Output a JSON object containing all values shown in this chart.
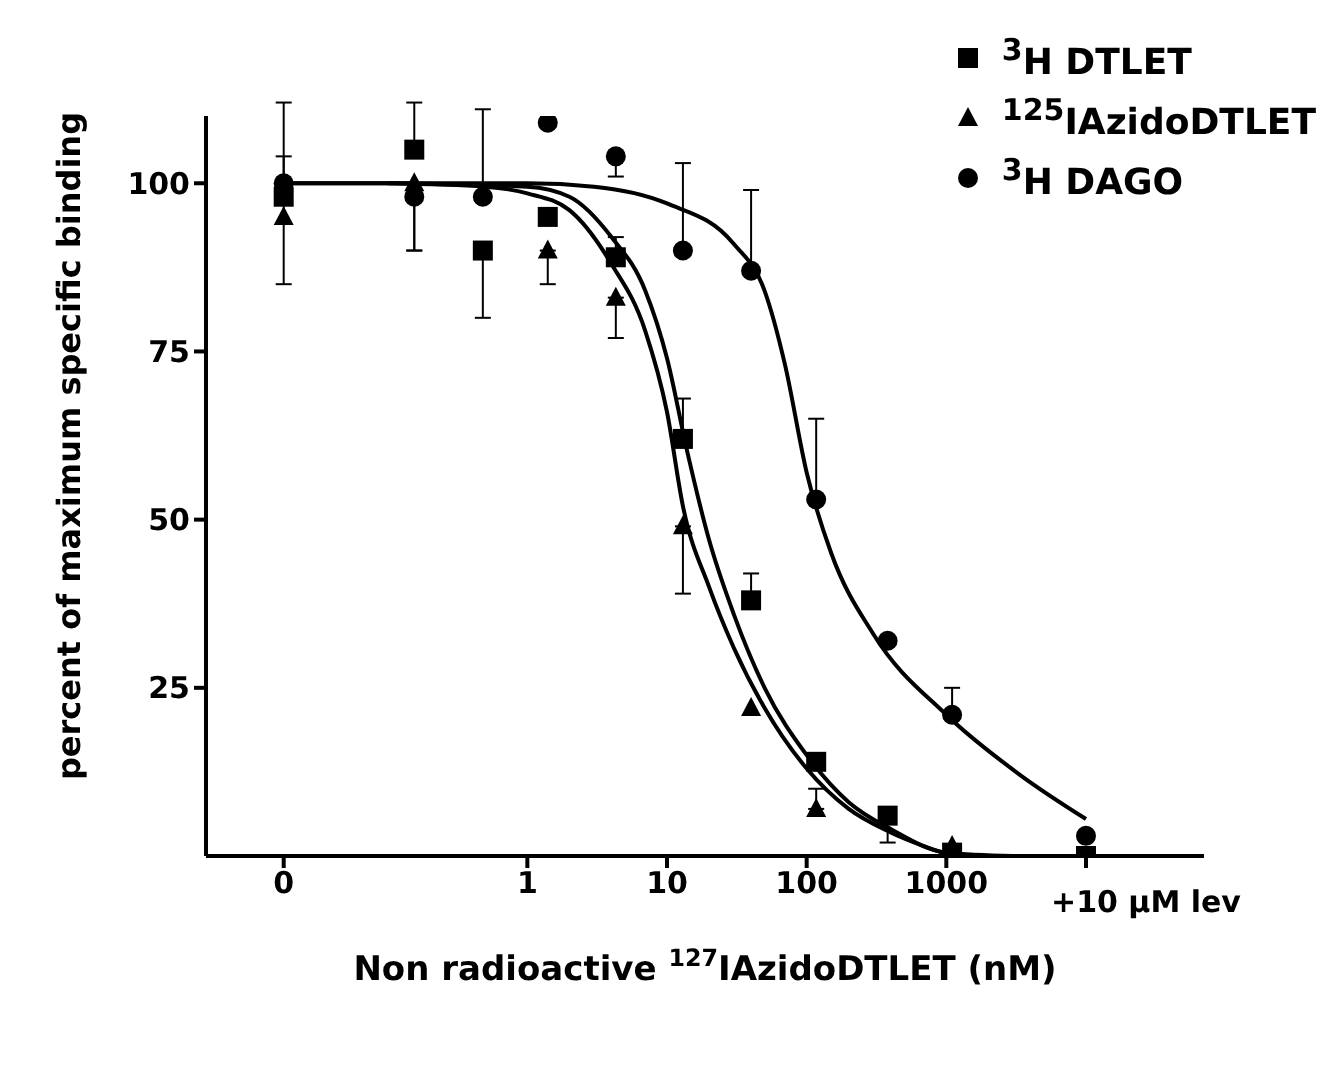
{
  "chart_data": {
    "type": "scatter",
    "xlabel": "Non radioactive $^{127}$IAzidoDTLET (nM)",
    "ylabel": "percent of maximum specific binding",
    "log": "x",
    "xlim": [
      0.005,
      70000
    ],
    "ylim": [
      0,
      110
    ],
    "xticks": [
      {
        "value": 0.018,
        "label": "0"
      },
      1,
      10,
      100,
      1000,
      {
        "value": 10000,
        "label": null
      }
    ],
    "annotations": [
      {
        "text": "+10 μM lev",
        "x": 10000,
        "y": 0
      }
    ],
    "yticks": [
      25,
      50,
      75,
      100
    ],
    "grid": false,
    "legend": "top right",
    "series": [
      {
        "name": "$^{3}$H DTLET",
        "marker": "square",
        "color": "#000000",
        "x": [
          0.018,
          0.155,
          0.48,
          1.4,
          4.3,
          13,
          40,
          117,
          380,
          1100,
          10000
        ],
        "values": [
          98,
          105,
          90,
          95,
          89,
          62,
          38,
          14,
          6,
          0.5,
          0
        ],
        "errors": [
          null,
          [
            105,
            112
          ],
          [
            80,
            90
          ],
          null,
          [
            89,
            92
          ],
          [
            62,
            68
          ],
          [
            38,
            42
          ],
          null,
          [
            2,
            6
          ],
          null,
          null
        ]
      },
      {
        "name": "$^{125}$IAzidoDTLET",
        "marker": "triangle",
        "color": "#000000",
        "x": [
          0.018,
          0.155,
          1.4,
          4.3,
          13,
          40,
          117,
          1100
        ],
        "values": [
          95,
          100,
          90,
          83,
          49,
          22,
          7,
          1.5
        ],
        "errors": [
          [
            85,
            104
          ],
          [
            90,
            100
          ],
          [
            85,
            90
          ],
          [
            77,
            83
          ],
          [
            39,
            49
          ],
          null,
          [
            7,
            10
          ],
          null
        ]
      },
      {
        "name": "$^{3}$H DAGO",
        "marker": "circle",
        "color": "#000000",
        "x": [
          0.018,
          0.155,
          0.48,
          1.4,
          4.3,
          13,
          40,
          117,
          380,
          1100,
          10000
        ],
        "values": [
          100,
          98,
          98,
          109,
          104,
          90,
          87,
          53,
          32,
          21,
          3
        ],
        "errors": [
          [
            100,
            112
          ],
          [
            90,
            98
          ],
          [
            98,
            111
          ],
          null,
          [
            101,
            104
          ],
          [
            90,
            103
          ],
          [
            87,
            99
          ],
          [
            53,
            65
          ],
          null,
          [
            21,
            25
          ],
          null
        ]
      },
      {
        "type": "line",
        "marker": "none",
        "color": "#000000",
        "x": [
          0.018,
          0.1,
          1,
          2,
          4,
          7,
          10,
          14,
          20,
          30,
          50,
          100,
          200,
          400,
          1000,
          3000
        ],
        "values": [
          100,
          100,
          99.5,
          98,
          92,
          84,
          74,
          60,
          47,
          36,
          25,
          15,
          8,
          4,
          0.5,
          0
        ]
      },
      {
        "type": "line",
        "marker": "none",
        "color": "#000000",
        "x": [
          0.1,
          0.5,
          1,
          2,
          4,
          7,
          10,
          13,
          20,
          30,
          50,
          100,
          200,
          400,
          1000
        ],
        "values": [
          100,
          99.5,
          98.5,
          96,
          88,
          78,
          66,
          52,
          40,
          31,
          22,
          13,
          7,
          3.5,
          0.3
        ]
      },
      {
        "type": "line",
        "marker": "none",
        "color": "#000000",
        "x": [
          0.018,
          1,
          3,
          10,
          30,
          50,
          70,
          100,
          150,
          300,
          1000,
          3400,
          10000
        ],
        "values": [
          100,
          100,
          99.5,
          97,
          91,
          84,
          73,
          57,
          45,
          33,
          21,
          12,
          5.5
        ]
      }
    ]
  }
}
